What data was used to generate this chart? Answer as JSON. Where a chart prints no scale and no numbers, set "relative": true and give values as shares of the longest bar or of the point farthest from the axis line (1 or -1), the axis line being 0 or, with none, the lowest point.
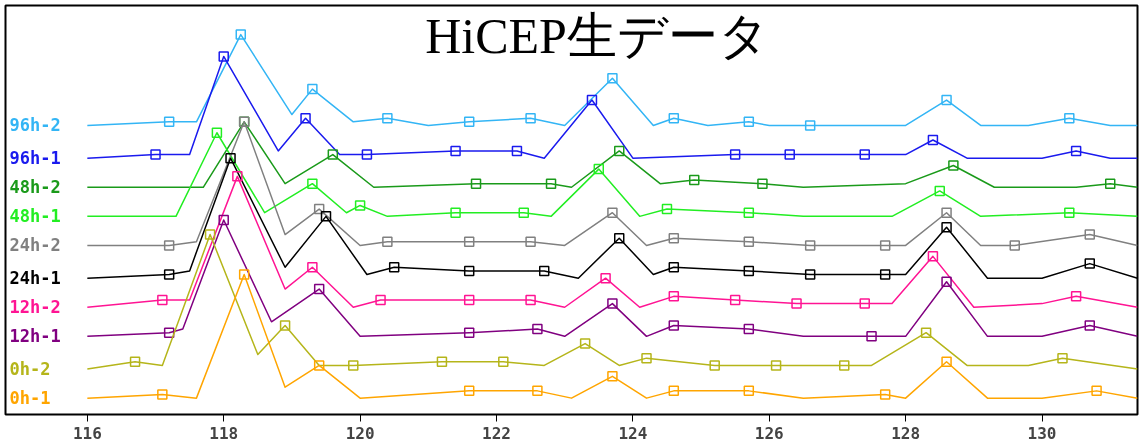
{
  "chart_data": {
    "type": "line",
    "title": "HiCEP生データ",
    "relative": true,
    "xlim": [
      114.8,
      131.4
    ],
    "xticks": [
      116,
      118,
      120,
      122,
      124,
      126,
      128,
      130
    ],
    "grid": false,
    "legend": false,
    "series": [
      {
        "name": "96h-2",
        "color": "#33b5f5",
        "marker": "none",
        "x": [
          116.0,
          117.2,
          117.6,
          118.25,
          119.0,
          119.3,
          119.9,
          120.4,
          121.0,
          121.6,
          122.5,
          123.0,
          123.7,
          124.3,
          124.6,
          125.1,
          125.7,
          126.0,
          126.6,
          127.5,
          128.0,
          128.6,
          129.1,
          129.8,
          130.4,
          131.0,
          131.4
        ],
        "values": [
          0.75,
          0.76,
          0.76,
          1.0,
          0.78,
          0.85,
          0.76,
          0.77,
          0.75,
          0.76,
          0.77,
          0.75,
          0.88,
          0.75,
          0.77,
          0.75,
          0.76,
          0.75,
          0.75,
          0.75,
          0.75,
          0.82,
          0.75,
          0.75,
          0.77,
          0.75,
          0.75
        ]
      },
      {
        "type": "scatter",
        "color": "#33b5f5",
        "marker": "square",
        "x": [
          117.2,
          118.25,
          119.3,
          120.4,
          121.6,
          122.5,
          123.7,
          124.6,
          125.7,
          126.6,
          128.6,
          130.4
        ],
        "values": [
          0.76,
          1.0,
          0.85,
          0.77,
          0.76,
          0.77,
          0.88,
          0.77,
          0.76,
          0.75,
          0.82,
          0.77
        ]
      },
      {
        "name": "96h-1",
        "color": "#1a1aee",
        "marker": "none",
        "x": [
          116.0,
          117.0,
          117.5,
          118.0,
          118.8,
          119.2,
          119.7,
          120.1,
          121.4,
          122.3,
          122.7,
          123.4,
          124.0,
          125.5,
          126.3,
          127.4,
          128.0,
          128.4,
          128.9,
          130.0,
          130.5,
          131.0,
          131.4
        ],
        "values": [
          0.66,
          0.67,
          0.67,
          0.94,
          0.68,
          0.77,
          0.67,
          0.67,
          0.68,
          0.68,
          0.66,
          0.82,
          0.66,
          0.67,
          0.67,
          0.67,
          0.67,
          0.71,
          0.66,
          0.66,
          0.68,
          0.66,
          0.66
        ]
      },
      {
        "type": "scatter",
        "color": "#1a1aee",
        "marker": "square",
        "x": [
          117.0,
          118.0,
          119.2,
          120.1,
          121.4,
          122.3,
          123.4,
          125.5,
          126.3,
          127.4,
          128.4,
          130.5
        ],
        "values": [
          0.67,
          0.94,
          0.77,
          0.67,
          0.68,
          0.68,
          0.82,
          0.67,
          0.67,
          0.67,
          0.71,
          0.68
        ]
      },
      {
        "name": "48h-2",
        "color": "#1a9a1a",
        "marker": "none",
        "x": [
          116.0,
          117.7,
          118.3,
          118.9,
          119.6,
          120.2,
          121.7,
          122.8,
          123.1,
          123.8,
          124.4,
          124.9,
          125.9,
          126.5,
          128.0,
          128.7,
          129.3,
          130.5,
          131.0,
          131.4
        ],
        "values": [
          0.58,
          0.58,
          0.76,
          0.59,
          0.67,
          0.58,
          0.59,
          0.59,
          0.58,
          0.68,
          0.59,
          0.6,
          0.59,
          0.58,
          0.59,
          0.64,
          0.58,
          0.58,
          0.59,
          0.58
        ]
      },
      {
        "type": "scatter",
        "color": "#1a9a1a",
        "marker": "square",
        "x": [
          118.3,
          119.6,
          121.7,
          122.8,
          123.8,
          124.9,
          125.9,
          128.7,
          131.0
        ],
        "values": [
          0.76,
          0.67,
          0.59,
          0.59,
          0.68,
          0.6,
          0.59,
          0.64,
          0.59
        ]
      },
      {
        "name": "48h-1",
        "color": "#22ee22",
        "marker": "none",
        "x": [
          116.0,
          117.3,
          117.9,
          118.6,
          119.3,
          119.8,
          120.0,
          120.4,
          121.4,
          122.4,
          122.8,
          123.5,
          124.1,
          124.5,
          125.7,
          126.5,
          127.8,
          128.5,
          129.1,
          130.4,
          131.4
        ],
        "values": [
          0.5,
          0.5,
          0.73,
          0.51,
          0.59,
          0.51,
          0.53,
          0.5,
          0.51,
          0.51,
          0.5,
          0.63,
          0.5,
          0.52,
          0.51,
          0.5,
          0.5,
          0.57,
          0.5,
          0.51,
          0.5
        ]
      },
      {
        "type": "scatter",
        "color": "#22ee22",
        "marker": "square",
        "x": [
          117.9,
          119.3,
          120.0,
          121.4,
          122.4,
          123.5,
          124.5,
          125.7,
          128.5,
          130.4
        ],
        "values": [
          0.73,
          0.59,
          0.53,
          0.51,
          0.51,
          0.63,
          0.52,
          0.51,
          0.57,
          0.51
        ]
      },
      {
        "name": "24h-2",
        "color": "#808080",
        "marker": "none",
        "x": [
          116.0,
          117.2,
          117.6,
          118.3,
          118.9,
          119.4,
          120.0,
          120.4,
          121.6,
          122.5,
          123.0,
          123.7,
          124.2,
          124.6,
          125.7,
          126.6,
          127.7,
          128.0,
          128.6,
          129.1,
          129.6,
          130.7,
          131.4
        ],
        "values": [
          0.42,
          0.42,
          0.43,
          0.76,
          0.45,
          0.52,
          0.42,
          0.43,
          0.43,
          0.43,
          0.42,
          0.51,
          0.42,
          0.44,
          0.43,
          0.42,
          0.42,
          0.42,
          0.51,
          0.42,
          0.42,
          0.45,
          0.42
        ]
      },
      {
        "type": "scatter",
        "color": "#808080",
        "marker": "square",
        "x": [
          117.2,
          118.3,
          119.4,
          120.4,
          121.6,
          122.5,
          123.7,
          124.6,
          125.7,
          126.6,
          127.7,
          128.6,
          129.6,
          130.7
        ],
        "values": [
          0.42,
          0.76,
          0.52,
          0.43,
          0.43,
          0.43,
          0.51,
          0.44,
          0.43,
          0.42,
          0.42,
          0.51,
          0.42,
          0.45
        ]
      },
      {
        "name": "24h-1",
        "color": "#000000",
        "marker": "none",
        "x": [
          116.0,
          117.2,
          117.5,
          118.1,
          118.9,
          119.5,
          120.1,
          120.5,
          121.6,
          122.7,
          123.2,
          123.8,
          124.3,
          124.6,
          125.7,
          126.6,
          127.7,
          128.0,
          128.6,
          129.2,
          130.0,
          130.7,
          131.4
        ],
        "values": [
          0.33,
          0.34,
          0.35,
          0.66,
          0.36,
          0.5,
          0.34,
          0.36,
          0.35,
          0.35,
          0.33,
          0.44,
          0.34,
          0.36,
          0.35,
          0.34,
          0.34,
          0.34,
          0.47,
          0.33,
          0.33,
          0.37,
          0.33
        ]
      },
      {
        "type": "scatter",
        "color": "#000000",
        "marker": "square",
        "x": [
          117.2,
          118.1,
          119.5,
          120.5,
          121.6,
          122.7,
          123.8,
          124.6,
          125.7,
          126.6,
          127.7,
          128.6,
          130.7
        ],
        "values": [
          0.34,
          0.66,
          0.5,
          0.36,
          0.35,
          0.35,
          0.44,
          0.36,
          0.35,
          0.34,
          0.34,
          0.47,
          0.37
        ]
      },
      {
        "name": "12h-2",
        "color": "#ff1493",
        "marker": "none",
        "x": [
          116.0,
          117.1,
          117.5,
          118.2,
          118.9,
          119.3,
          119.9,
          120.3,
          121.6,
          122.5,
          123.0,
          123.6,
          124.1,
          124.6,
          125.5,
          126.4,
          127.4,
          127.8,
          128.4,
          129.0,
          130.0,
          130.5,
          131.4
        ],
        "values": [
          0.25,
          0.27,
          0.27,
          0.61,
          0.3,
          0.36,
          0.25,
          0.27,
          0.27,
          0.27,
          0.25,
          0.33,
          0.25,
          0.28,
          0.27,
          0.26,
          0.26,
          0.26,
          0.39,
          0.25,
          0.26,
          0.28,
          0.25
        ]
      },
      {
        "type": "scatter",
        "color": "#ff1493",
        "marker": "square",
        "x": [
          117.1,
          118.2,
          119.3,
          120.3,
          121.6,
          122.5,
          123.6,
          124.6,
          125.5,
          126.4,
          127.4,
          128.4,
          130.5
        ],
        "values": [
          0.27,
          0.61,
          0.36,
          0.27,
          0.27,
          0.27,
          0.33,
          0.28,
          0.27,
          0.26,
          0.26,
          0.39,
          0.28
        ]
      },
      {
        "name": "12h-1",
        "color": "#800080",
        "marker": "none",
        "x": [
          116.0,
          117.2,
          117.4,
          118.0,
          118.7,
          119.4,
          120.0,
          121.6,
          122.6,
          123.0,
          123.7,
          124.2,
          124.6,
          125.7,
          126.5,
          127.5,
          128.0,
          128.6,
          129.2,
          130.0,
          130.7,
          131.4
        ],
        "values": [
          0.17,
          0.18,
          0.19,
          0.49,
          0.21,
          0.3,
          0.17,
          0.18,
          0.19,
          0.17,
          0.26,
          0.17,
          0.2,
          0.19,
          0.17,
          0.17,
          0.17,
          0.32,
          0.17,
          0.17,
          0.2,
          0.17
        ]
      },
      {
        "type": "scatter",
        "color": "#800080",
        "marker": "square",
        "x": [
          117.2,
          118.0,
          119.4,
          121.6,
          122.6,
          123.7,
          124.6,
          125.7,
          127.5,
          128.6,
          130.7
        ],
        "values": [
          0.18,
          0.49,
          0.3,
          0.18,
          0.19,
          0.26,
          0.2,
          0.19,
          0.17,
          0.32,
          0.2
        ]
      },
      {
        "name": "0h-2",
        "color": "#b5b51a",
        "marker": "none",
        "x": [
          116.0,
          116.7,
          117.1,
          117.8,
          118.5,
          118.9,
          119.4,
          119.9,
          121.2,
          122.1,
          122.7,
          123.3,
          123.8,
          124.2,
          125.2,
          126.1,
          127.1,
          127.5,
          128.3,
          128.9,
          129.8,
          130.3,
          131.4
        ],
        "values": [
          0.08,
          0.1,
          0.09,
          0.45,
          0.12,
          0.2,
          0.09,
          0.09,
          0.1,
          0.1,
          0.09,
          0.15,
          0.09,
          0.11,
          0.09,
          0.09,
          0.09,
          0.09,
          0.18,
          0.09,
          0.09,
          0.11,
          0.08
        ]
      },
      {
        "type": "scatter",
        "color": "#b5b51a",
        "marker": "square",
        "x": [
          116.7,
          117.8,
          118.9,
          119.9,
          121.2,
          122.1,
          123.3,
          124.2,
          125.2,
          126.1,
          127.1,
          128.3,
          130.3
        ],
        "values": [
          0.1,
          0.45,
          0.2,
          0.09,
          0.1,
          0.1,
          0.15,
          0.11,
          0.09,
          0.09,
          0.09,
          0.18,
          0.11
        ]
      },
      {
        "name": "0h-1",
        "color": "#ffa500",
        "marker": "none",
        "x": [
          116.0,
          117.1,
          117.6,
          118.3,
          118.9,
          119.4,
          120.0,
          121.6,
          122.6,
          123.1,
          123.7,
          124.2,
          124.6,
          125.7,
          126.5,
          127.7,
          128.0,
          128.6,
          129.2,
          130.0,
          130.8,
          131.4
        ],
        "values": [
          0.0,
          0.01,
          0.0,
          0.34,
          0.03,
          0.09,
          0.0,
          0.02,
          0.02,
          0.0,
          0.06,
          0.0,
          0.02,
          0.02,
          0.0,
          0.01,
          0.0,
          0.1,
          0.0,
          0.0,
          0.02,
          0.0
        ]
      },
      {
        "type": "scatter",
        "color": "#ffa500",
        "marker": "square",
        "x": [
          117.1,
          118.3,
          119.4,
          121.6,
          122.6,
          123.7,
          124.6,
          125.7,
          127.7,
          128.6,
          130.8
        ],
        "values": [
          0.01,
          0.34,
          0.09,
          0.02,
          0.02,
          0.06,
          0.02,
          0.02,
          0.01,
          0.1,
          0.02
        ]
      }
    ]
  }
}
